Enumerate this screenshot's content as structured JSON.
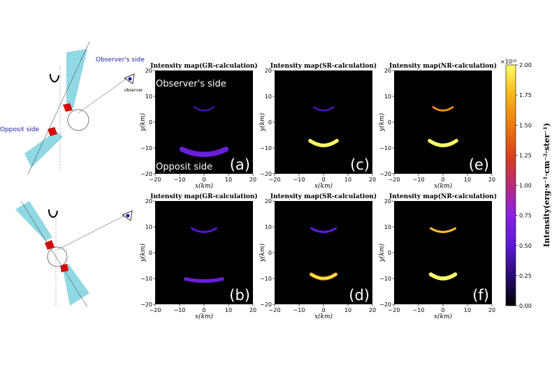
{
  "chart_data": {
    "type": "heatmap",
    "title": "",
    "panels": [
      {
        "id": "a",
        "title": "Intensity map(GR-calculation)",
        "letter": "(a)",
        "row": "top",
        "xlabel": "x(km)",
        "ylabel": "y(km)",
        "xlim": [
          -20,
          20
        ],
        "ylim": [
          -20,
          20
        ],
        "xticks": [
          "−20",
          "−10",
          "0",
          "10",
          "20"
        ],
        "yticks": [
          "20",
          "10",
          "0",
          "−10",
          "−20"
        ],
        "arcs": [
          {
            "y": -12.5,
            "half_width": 9,
            "sag": 2.0,
            "thickness": 2.0,
            "intensity": 0.3
          },
          {
            "y": 4.5,
            "half_width": 4,
            "sag": 1.3,
            "thickness": 0.7,
            "intensity": 0.18
          }
        ]
      },
      {
        "id": "c",
        "title": "Intensity map(SR-calculation)",
        "letter": "(c)",
        "row": "top",
        "xlabel": "x(km)",
        "ylabel": "y(km)",
        "xlim": [
          -20,
          20
        ],
        "ylim": [
          -20,
          20
        ],
        "xticks": [
          "−20",
          "−10",
          "0",
          "10",
          "20"
        ],
        "yticks": [
          "20",
          "10",
          "0",
          "−10",
          "−20"
        ],
        "arcs": [
          {
            "y": -9,
            "half_width": 5.5,
            "sag": 1.8,
            "thickness": 1.4,
            "intensity": 1.0
          },
          {
            "y": 4.5,
            "half_width": 4,
            "sag": 1.3,
            "thickness": 0.7,
            "intensity": 0.2
          }
        ]
      },
      {
        "id": "e",
        "title": "Intensity map(NR-calculation)",
        "letter": "(e)",
        "row": "top",
        "xlabel": "x(km)",
        "ylabel": "y(km)",
        "xlim": [
          -20,
          20
        ],
        "ylim": [
          -20,
          20
        ],
        "xticks": [
          "−20",
          "−10",
          "0",
          "10",
          "20"
        ],
        "yticks": [
          "20",
          "10",
          "0",
          "−10",
          "−20"
        ],
        "arcs": [
          {
            "y": -9,
            "half_width": 5.5,
            "sag": 1.8,
            "thickness": 1.4,
            "intensity": 1.0
          },
          {
            "y": 4.5,
            "half_width": 4,
            "sag": 1.3,
            "thickness": 0.8,
            "intensity": 0.72
          }
        ]
      },
      {
        "id": "b",
        "title": "Intensity map(GR-calculation)",
        "letter": "(b)",
        "row": "bottom",
        "xlabel": "x(km)",
        "ylabel": "y(km)",
        "xlim": [
          -20,
          20
        ],
        "ylim": [
          -20,
          20
        ],
        "xticks": [
          "−20",
          "−10",
          "0",
          "10",
          "20"
        ],
        "yticks": [
          "20",
          "10",
          "0",
          "−10",
          "−20"
        ],
        "arcs": [
          {
            "y": -11,
            "half_width": 7.5,
            "sag": 0.8,
            "thickness": 1.4,
            "intensity": 0.3
          },
          {
            "y": 8,
            "half_width": 5,
            "sag": 1.4,
            "thickness": 0.9,
            "intensity": 0.22
          }
        ]
      },
      {
        "id": "d",
        "title": "Intensity map(SR-calculation)",
        "letter": "(d)",
        "row": "bottom",
        "xlabel": "x(km)",
        "ylabel": "y(km)",
        "xlim": [
          -20,
          20
        ],
        "ylim": [
          -20,
          20
        ],
        "xticks": [
          "−20",
          "−10",
          "0",
          "10",
          "20"
        ],
        "yticks": [
          "20",
          "10",
          "0",
          "−10",
          "−20"
        ],
        "arcs": [
          {
            "y": -10,
            "half_width": 5,
            "sag": 1.6,
            "thickness": 1.4,
            "intensity": 0.85
          },
          {
            "y": 8,
            "half_width": 5,
            "sag": 1.4,
            "thickness": 0.9,
            "intensity": 0.25
          }
        ]
      },
      {
        "id": "f",
        "title": "Intensity map(NR-calculation)",
        "letter": "(f)",
        "row": "bottom",
        "xlabel": "x(km)",
        "ylabel": "y(km)",
        "xlim": [
          -20,
          20
        ],
        "ylim": [
          -20,
          20
        ],
        "xticks": [
          "−20",
          "−10",
          "0",
          "10",
          "20"
        ],
        "yticks": [
          "20",
          "10",
          "0",
          "−10",
          "−20"
        ],
        "arcs": [
          {
            "y": -10,
            "half_width": 5,
            "sag": 1.6,
            "thickness": 1.5,
            "intensity": 1.0
          },
          {
            "y": 8,
            "half_width": 5,
            "sag": 1.4,
            "thickness": 0.9,
            "intensity": 0.8
          }
        ]
      }
    ],
    "colorbar": {
      "label": "Intensity(erg·s⁻¹·cm⁻²·ster⁻¹)",
      "multiplier": "×10²⁸",
      "range": [
        0,
        2
      ],
      "ticks": [
        "0.00",
        "0.25",
        "0.50",
        "0.75",
        "1.00",
        "1.25",
        "1.50",
        "1.75",
        "2.00"
      ]
    },
    "annotations": {
      "observers_side": "Observer's side",
      "opposit_side": "Opposit side"
    }
  },
  "diagram": {
    "observers_side": "Observer's side",
    "opposit_side": "Opposit side",
    "observer": "observer"
  },
  "colors": {
    "cone": "#8fd8e4",
    "cap": "#dd0000",
    "background": "#000000"
  }
}
